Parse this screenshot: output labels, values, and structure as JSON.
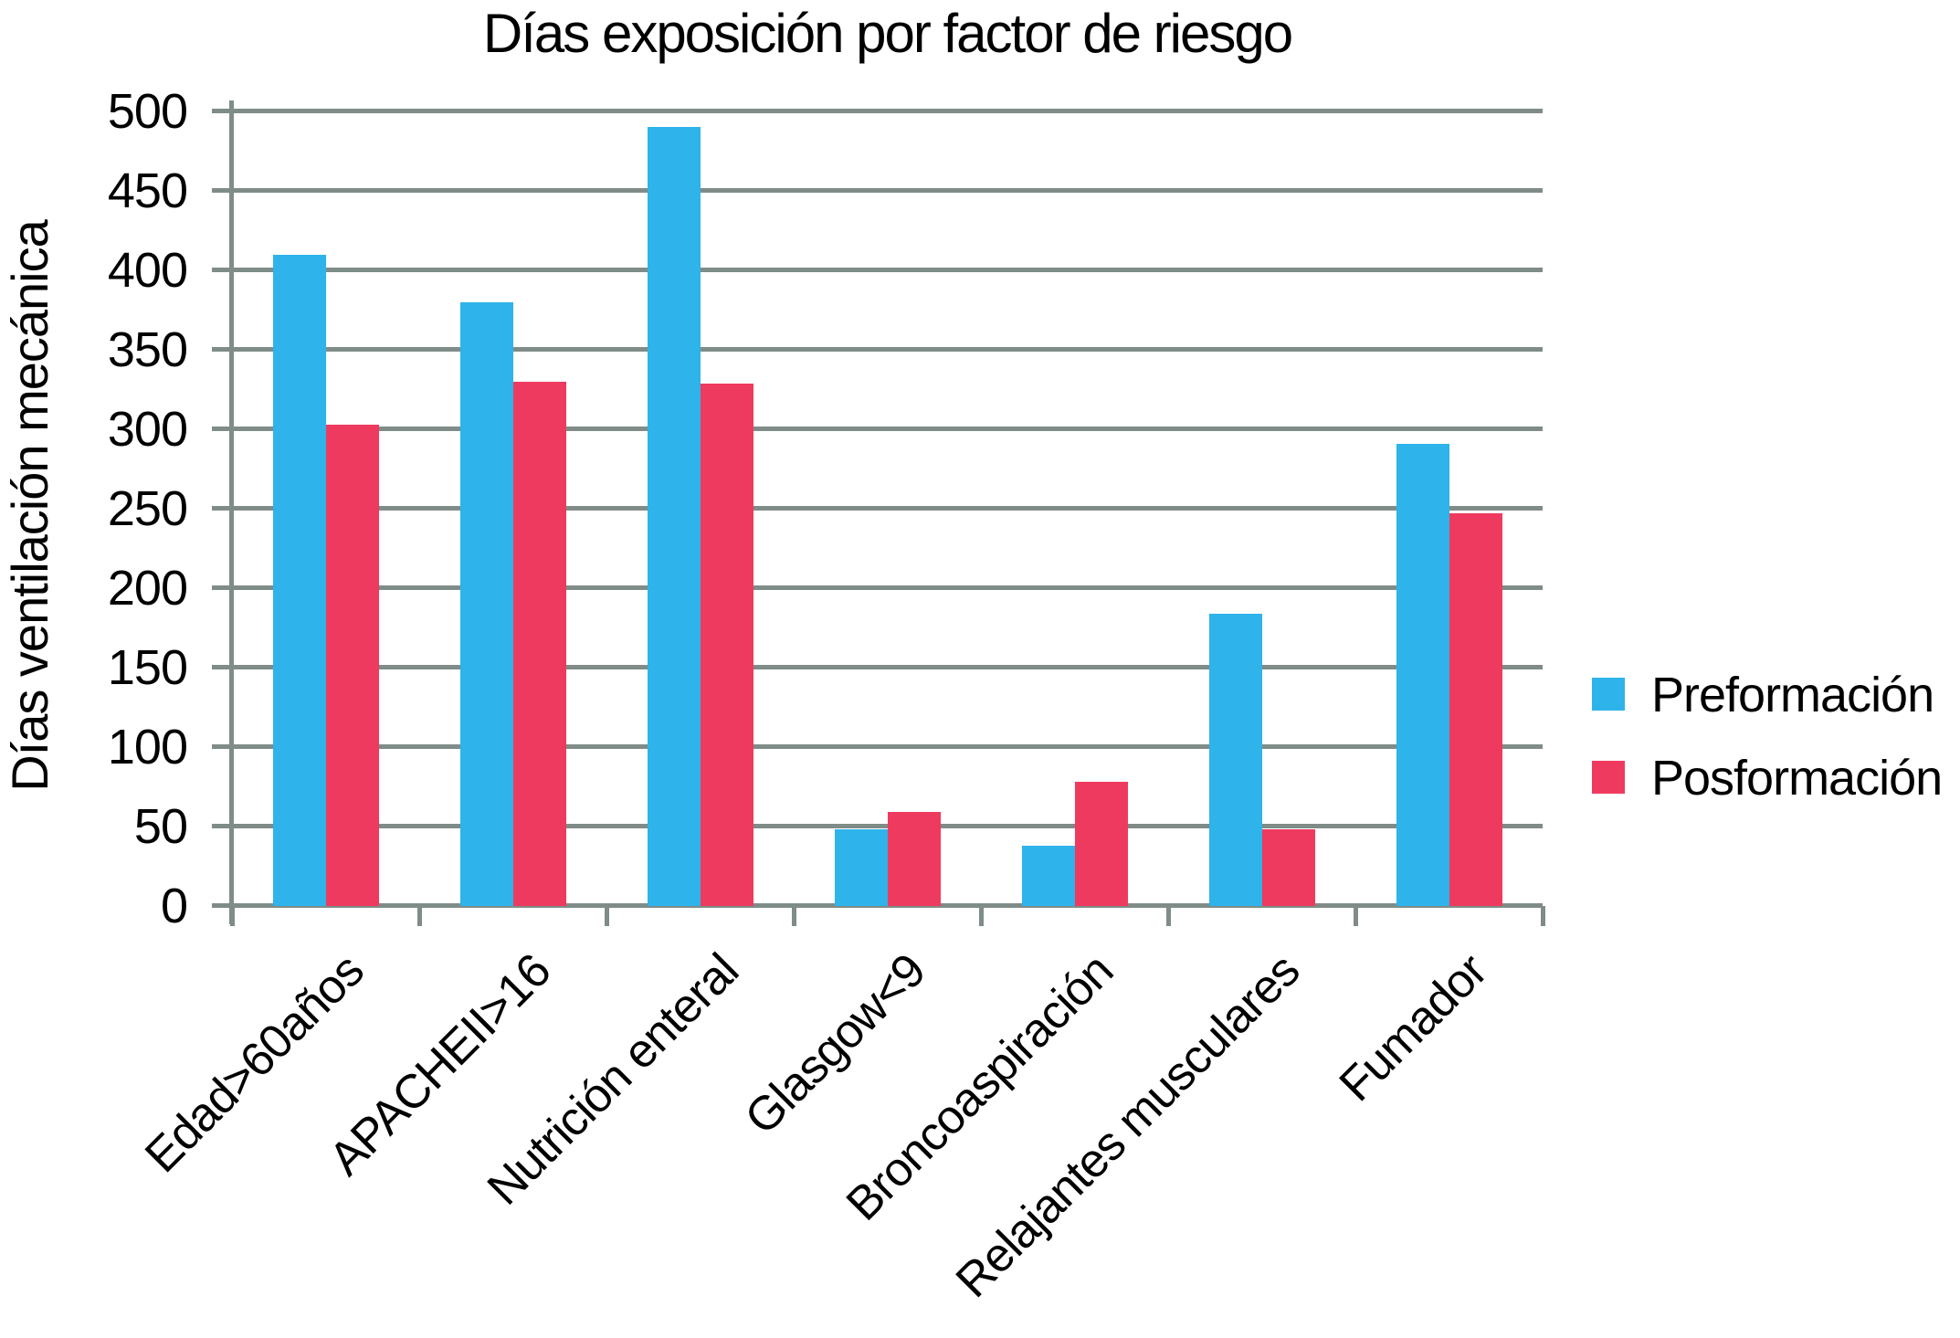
{
  "chart_data": {
    "type": "bar",
    "title": "Días exposición por factor de riesgo",
    "ylabel": "Días ventilación mecánica",
    "xlabel": "",
    "categories": [
      "Edad>60años",
      "APACHEII>16",
      "Nutrición enteral",
      "Glasgow<9",
      "Broncoaspiración",
      "Relajantes musculares",
      "Fumador"
    ],
    "series": [
      {
        "name": "Preformación",
        "color": "#2EB3EA",
        "values": [
          410,
          380,
          490,
          48,
          38,
          184,
          291
        ]
      },
      {
        "name": "Posformación",
        "color": "#EF3A5F",
        "values": [
          303,
          330,
          329,
          59,
          78,
          48,
          247
        ]
      }
    ],
    "ylim": [
      0,
      500
    ],
    "yticks": [
      0,
      50,
      100,
      150,
      200,
      250,
      300,
      350,
      400,
      450,
      500
    ],
    "grid": true,
    "legend_position": "right",
    "axis_color": "#7f8c88"
  }
}
